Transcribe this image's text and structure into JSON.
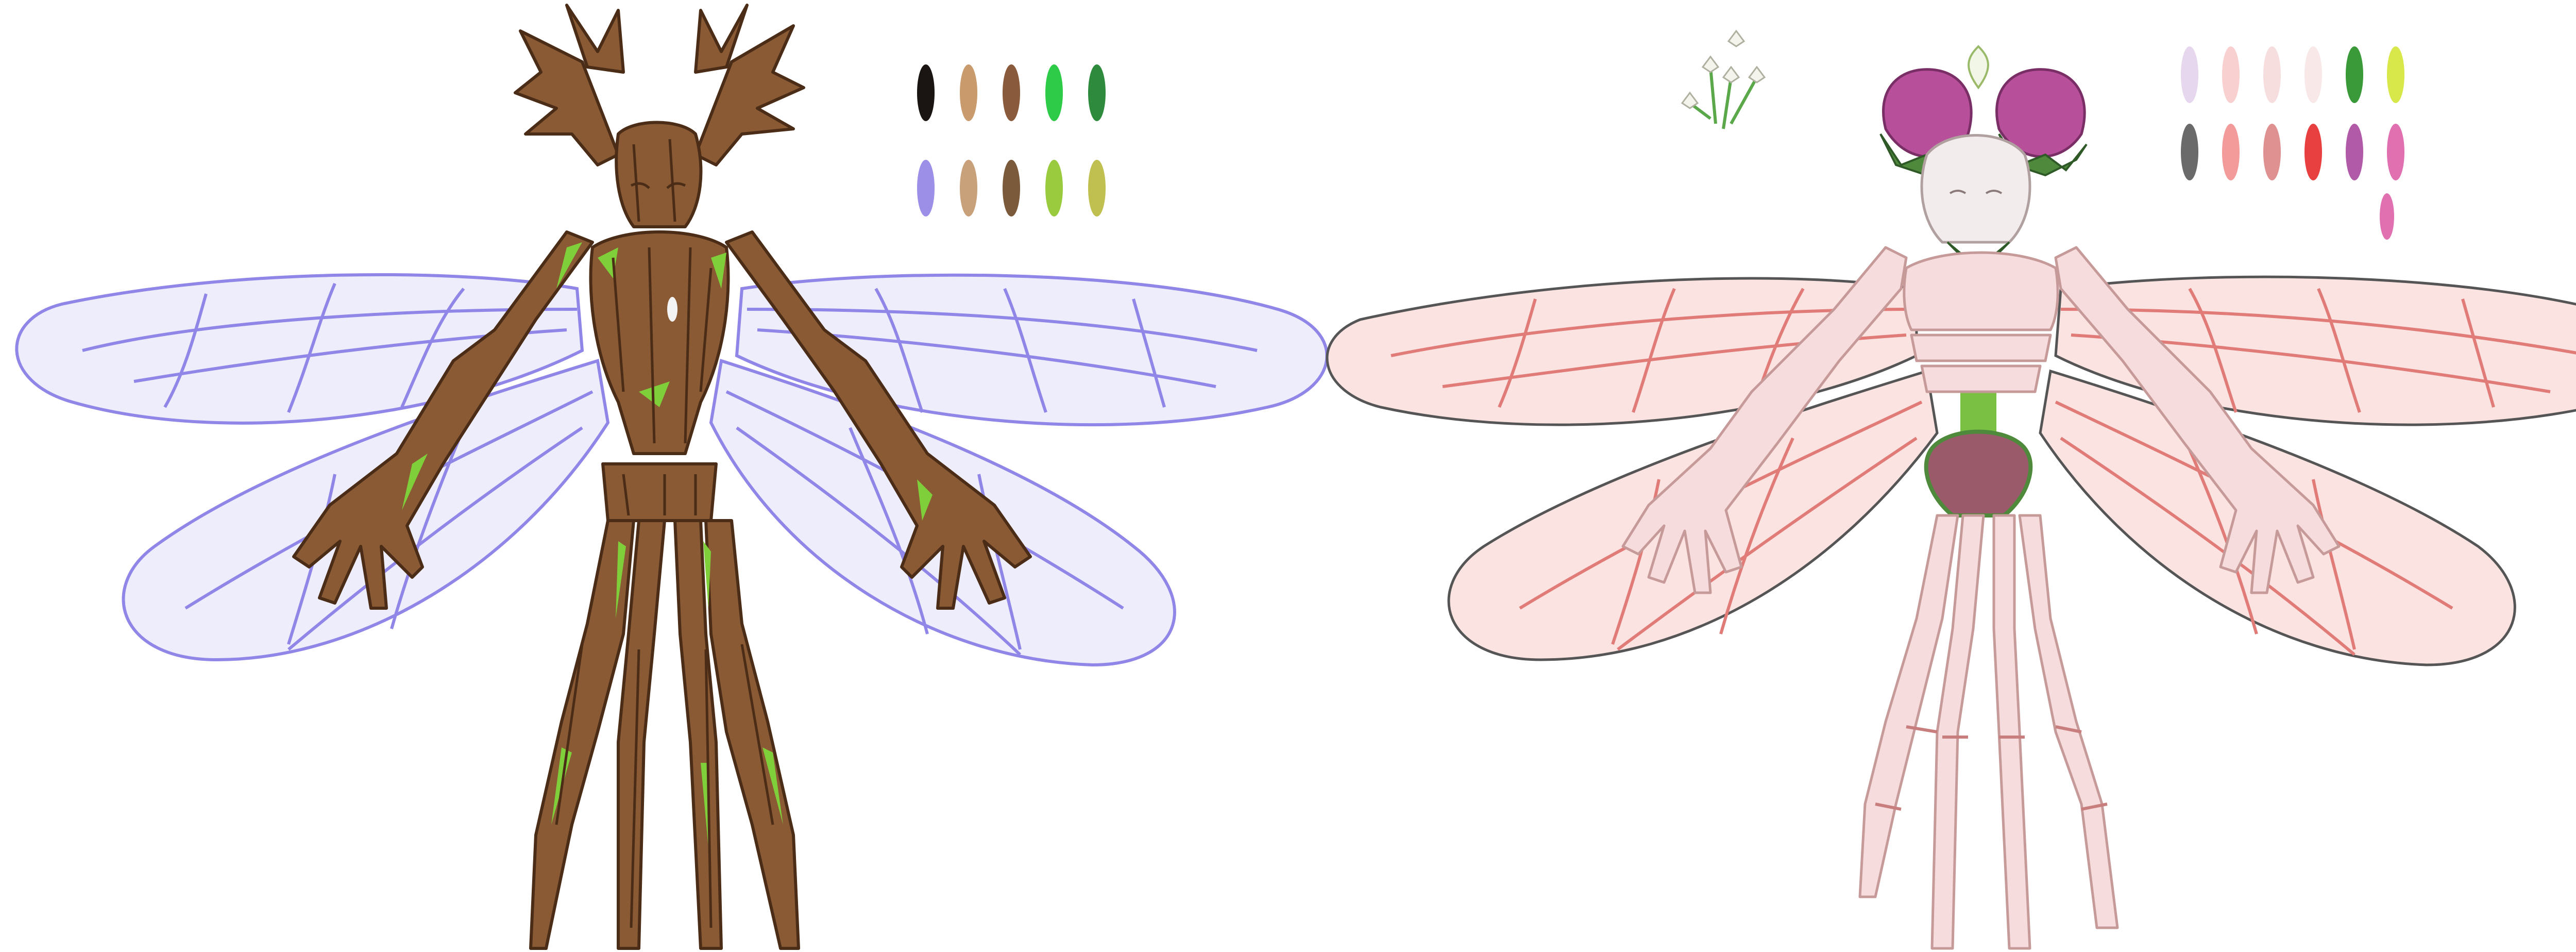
{
  "canvas": {
    "background": "#ffffff"
  },
  "characters": [
    {
      "name": "wood-fairy",
      "wing_fill": "#ecebfb",
      "wing_stroke": "#8f86e8",
      "body_fill": "#8a5a35",
      "body_dark": "#4a2c17",
      "moss": "#7fcf3a"
    },
    {
      "name": "clover-fairy",
      "wing_fill": "#fbe1df",
      "wing_stroke": "#e07b78",
      "wing_outline": "#555555",
      "body_fill": "#f6dcdc",
      "body_stroke": "#c79a9a",
      "head_fill": "#f3eced",
      "neck_fill": "#7ac043",
      "flower": "#b74f9a",
      "leaf": "#4f8a3c"
    }
  ],
  "palettes": {
    "wood": {
      "swatches": [
        "#1a1512",
        "#c89a6c",
        "#8a5a3c",
        "#2ecb48",
        "#2e8b3e",
        "#9b8fe8",
        "#c8a07a",
        "#7a5a3a",
        "#9acb3e",
        "#c0c050"
      ]
    },
    "clover": {
      "swatches": [
        "#e6d6ee",
        "#f8d0d0",
        "#f6dede",
        "#f8e8e8",
        "#3a9a3a",
        "#d8e84a",
        "#6a6a6a",
        "#f39a9a",
        "#df9090",
        "#e84040",
        "#b05aa8",
        "#e070b0"
      ]
    }
  }
}
